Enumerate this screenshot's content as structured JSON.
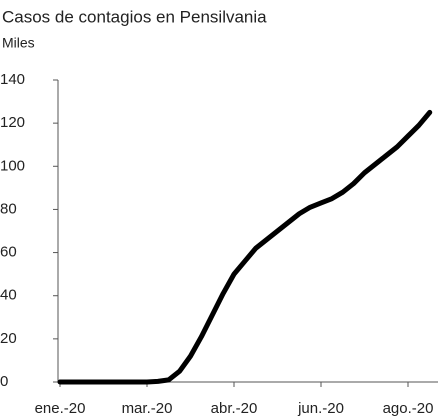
{
  "chart_data": {
    "type": "line",
    "title": "Casos de contagios en Pensilvania",
    "subtitle": "Miles",
    "categories": [
      "ene.-20",
      null,
      null,
      null,
      null,
      null,
      null,
      null,
      "mar.-20",
      null,
      null,
      null,
      null,
      null,
      null,
      null,
      "abr.-20",
      null,
      null,
      null,
      null,
      null,
      null,
      null,
      "jun.-20",
      null,
      null,
      null,
      null,
      null,
      null,
      null,
      "ago.-20",
      null,
      null
    ],
    "series": [
      {
        "color": "#000000",
        "values": [
          0,
          0,
          0,
          0,
          0,
          0,
          0,
          0,
          0,
          0.3,
          1,
          5,
          12,
          21,
          31,
          41,
          50,
          56,
          62,
          66,
          70,
          74,
          78,
          81,
          83,
          85,
          88,
          92,
          97,
          101,
          105,
          109,
          114,
          119,
          125
        ]
      }
    ],
    "ylim": [
      0,
      140
    ],
    "yticks": [
      0,
      20,
      40,
      60,
      80,
      100,
      120,
      140
    ],
    "grid": false
  }
}
